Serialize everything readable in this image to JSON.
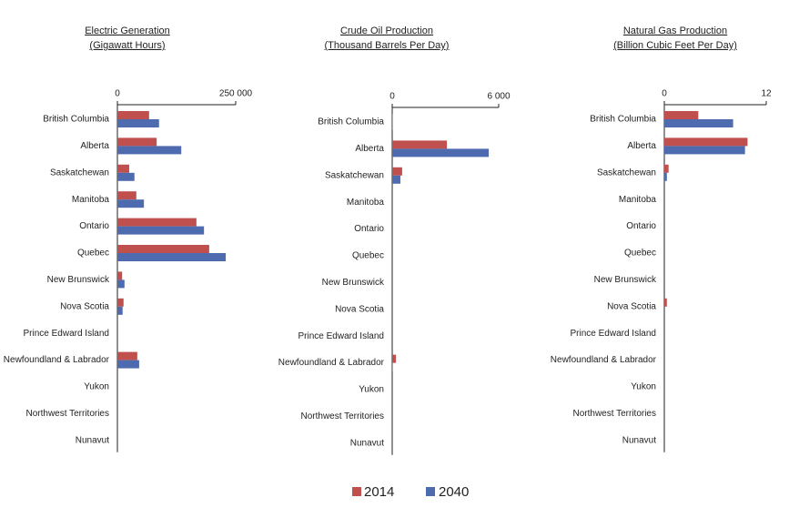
{
  "chart_data": [
    {
      "type": "bar",
      "orientation": "horizontal",
      "title": "Electric Generation",
      "subtitle": "(Gigawatt Hours)",
      "categories": [
        "British Columbia",
        "Alberta",
        "Saskatchewan",
        "Manitoba",
        "Ontario",
        "Quebec",
        "New Brunswick",
        "Nova Scotia",
        "Prince Edward Island",
        "Newfoundland & Labrador",
        "Yukon",
        "Northwest Territories",
        "Nunavut"
      ],
      "series": [
        {
          "name": "2014",
          "color": "#c0504d",
          "values": [
            67000,
            83000,
            25000,
            40000,
            167000,
            194000,
            10000,
            13000,
            0,
            42000,
            0,
            0,
            0
          ]
        },
        {
          "name": "2040",
          "color": "#4f6bb0",
          "values": [
            88000,
            135000,
            36000,
            56000,
            183000,
            229000,
            15000,
            11000,
            0,
            46000,
            0,
            0,
            0
          ]
        }
      ],
      "xlim": [
        0,
        250000
      ],
      "xticks": [
        0,
        {
          "value": 250000,
          "label": "250 000"
        }
      ]
    },
    {
      "type": "bar",
      "orientation": "horizontal",
      "title": "Crude Oil Production",
      "subtitle": "(Thousand Barrels Per Day)",
      "categories": [
        "British Columbia",
        "Alberta",
        "Saskatchewan",
        "Manitoba",
        "Ontario",
        "Quebec",
        "New Brunswick",
        "Nova Scotia",
        "Prince Edward Island",
        "Newfoundland & Labrador",
        "Yukon",
        "Northwest Territories",
        "Nunavut"
      ],
      "series": [
        {
          "color": "#c0504d",
          "values": [
            20,
            3080,
            560,
            0,
            0,
            0,
            0,
            0,
            0,
            210,
            0,
            0,
            0
          ]
        },
        {
          "color": "#4f6bb0",
          "values": [
            20,
            5440,
            460,
            0,
            0,
            0,
            0,
            0,
            0,
            30,
            0,
            0,
            0
          ]
        }
      ],
      "xlim": [
        0,
        6000
      ],
      "xticks": [
        0,
        {
          "value": 6000,
          "label": "6 000"
        }
      ]
    },
    {
      "type": "bar",
      "orientation": "horizontal",
      "title": "Natural Gas Production",
      "subtitle": "(Billion Cubic Feet Per Day)",
      "categories": [
        "British Columbia",
        "Alberta",
        "Saskatchewan",
        "Manitoba",
        "Ontario",
        "Quebec",
        "New Brunswick",
        "Nova Scotia",
        "Prince Edward Island",
        "Newfoundland & Labrador",
        "Yukon",
        "Northwest Territories",
        "Nunavut"
      ],
      "series": [
        {
          "color": "#c0504d",
          "values": [
            4.0,
            9.8,
            0.5,
            0,
            0,
            0,
            0,
            0.3,
            0,
            0,
            0,
            0,
            0
          ]
        },
        {
          "color": "#4f6bb0",
          "values": [
            8.1,
            9.5,
            0.3,
            0,
            0,
            0,
            0,
            0,
            0,
            0,
            0,
            0,
            0
          ]
        }
      ],
      "xlim": [
        0,
        12
      ],
      "xticks": [
        0,
        12
      ]
    }
  ]
}
